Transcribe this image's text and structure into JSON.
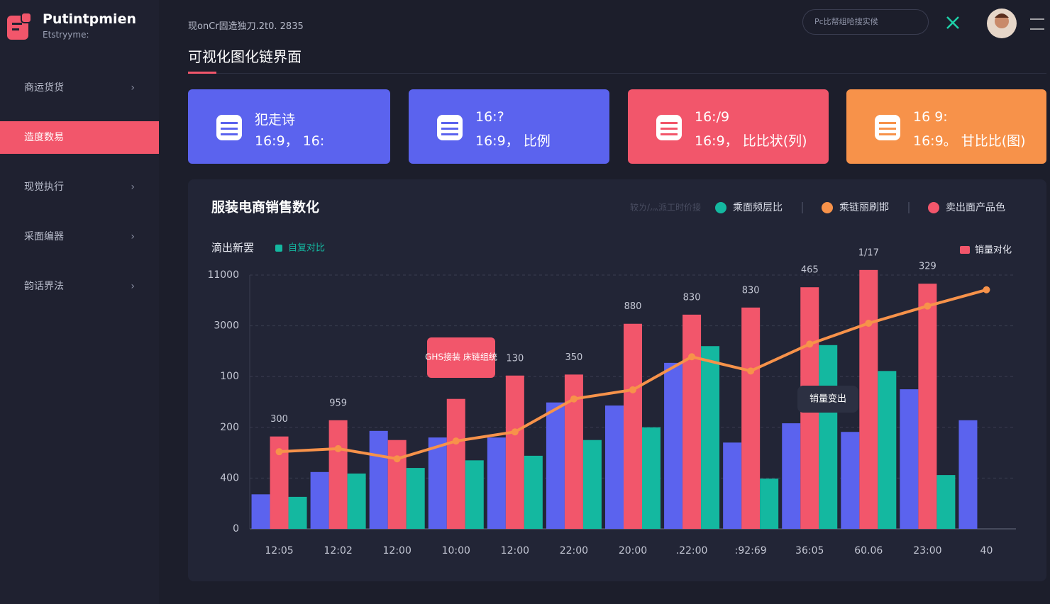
{
  "sidebar": {
    "logo_title": "Putintpmien",
    "logo_subtitle": "Etstryyme:",
    "menu": [
      {
        "label": "商运货货",
        "active": false
      },
      {
        "label": "造度数易",
        "active": true
      },
      {
        "label": "现觉执行",
        "active": false
      },
      {
        "label": "采面编器",
        "active": false
      },
      {
        "label": "韵话界法",
        "active": false
      }
    ]
  },
  "header": {
    "breadcrumb": "现onCr固造独刀.2t0. 2835",
    "title": "可视化图化链界面",
    "search_placeholder": "Pc比帮组哈搜实候"
  },
  "cards": [
    {
      "title": "犯走诗",
      "subtitle": "16:9， 16:",
      "color": "#5b63ee"
    },
    {
      "title": "16:?",
      "subtitle": "16:9， 比例",
      "color": "#5b63ee"
    },
    {
      "title": "16:/9",
      "subtitle": "16:9， 比比状(列)",
      "color": "#f2566b"
    },
    {
      "title": "16 9:",
      "subtitle": "16:9。 甘比比(图)",
      "color": "#f7924a"
    }
  ],
  "chart_data": {
    "type": "bar",
    "title": "服装电商销售数化",
    "filter_label": "较ㄌ/灬派工时价接",
    "top_legend": [
      {
        "name": "乘面频层比",
        "color": "#14b8a0"
      },
      {
        "name": "乘链丽刷邯",
        "color": "#f7924a"
      },
      {
        "name": "卖出面产品色",
        "color": "#f2566b"
      }
    ],
    "categories": [
      "12:05",
      "12:02",
      "12:00",
      "10:00",
      "12:00",
      "22:00",
      "20:00",
      ".22:00",
      ":92:69",
      "36:05",
      "60.06",
      "23:00",
      "40"
    ],
    "series": [
      {
        "name": "滴出新罢",
        "color": "#5b63ee",
        "values": [
          0.68,
          1.12,
          1.93,
          1.8,
          1.8,
          2.49,
          2.43,
          3.27,
          1.7,
          2.08,
          1.91,
          2.75,
          2.14
        ]
      },
      {
        "name": "销量对化",
        "color": "#f2566b",
        "values": [
          1.82,
          2.14,
          1.75,
          2.56,
          3.02,
          3.04,
          4.04,
          4.22,
          4.36,
          4.76,
          5.1,
          4.83,
          null
        ]
      },
      {
        "name": "自复对比",
        "color": "#14b8a0",
        "values": [
          0.63,
          1.09,
          1.2,
          1.35,
          1.44,
          1.75,
          2.0,
          3.6,
          0.99,
          3.62,
          3.11,
          1.06,
          null
        ]
      },
      {
        "name": "乘链丽刷邯",
        "color": "#f7924a",
        "type": "line",
        "values": [
          1.52,
          1.58,
          1.38,
          1.73,
          1.91,
          2.56,
          2.74,
          3.39,
          3.11,
          3.64,
          4.05,
          4.39,
          4.71
        ]
      }
    ],
    "top_labels": [
      "300",
      "959",
      null,
      null,
      "130",
      "350",
      "880",
      "830",
      "830",
      "465",
      "1/17",
      "329",
      null
    ],
    "annotations": [
      "GHS接装 床链组统",
      "销量变出"
    ],
    "ylim": [
      0,
      5
    ],
    "yticks": [
      0,
      {
        "value": 1,
        "label": "400"
      },
      {
        "value": 2,
        "label": "200"
      },
      {
        "value": 3,
        "label": "100"
      },
      {
        "value": 4,
        "label": "3000"
      },
      {
        "value": 5,
        "label": "11000"
      }
    ],
    "grid": true
  }
}
